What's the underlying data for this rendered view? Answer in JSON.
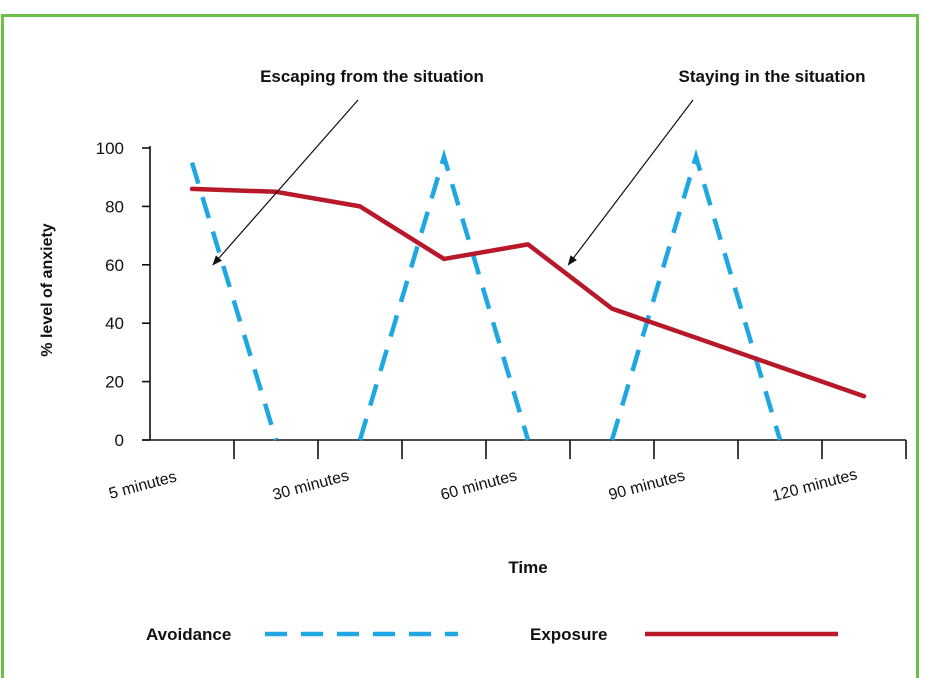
{
  "colors": {
    "frame": "#6cc04a",
    "avoidance": "#1ea7e1",
    "exposure": "#b7182a",
    "axis": "#111111"
  },
  "chart_data": {
    "type": "line",
    "title": "",
    "xlabel": "Time",
    "ylabel": "% level of anxiety",
    "ylim": [
      0,
      100
    ],
    "yticks": [
      0,
      20,
      40,
      60,
      80,
      100
    ],
    "xlim": [
      0,
      9
    ],
    "x_tick_labels": [
      {
        "x": 0.5,
        "label": "5 minutes"
      },
      {
        "x": 2.5,
        "label": "30 minutes"
      },
      {
        "x": 4.5,
        "label": "60 minutes"
      },
      {
        "x": 6.5,
        "label": "90 minutes"
      },
      {
        "x": 8.5,
        "label": "120 minutes"
      }
    ],
    "x_minor_ticks": [
      1,
      2,
      3,
      4,
      5,
      6,
      7,
      8,
      9
    ],
    "grid": false,
    "legend_position": "bottom",
    "series": [
      {
        "name": "Avoidance",
        "style": "dashed",
        "segments": [
          [
            {
              "x": 0.5,
              "y": 95
            },
            {
              "x": 1.5,
              "y": 0
            }
          ],
          [
            {
              "x": 2.5,
              "y": 0
            },
            {
              "x": 3.5,
              "y": 97
            },
            {
              "x": 4.5,
              "y": 0
            }
          ],
          [
            {
              "x": 5.5,
              "y": 0
            },
            {
              "x": 6.5,
              "y": 97
            },
            {
              "x": 7.5,
              "y": 0
            }
          ]
        ]
      },
      {
        "name": "Exposure",
        "style": "solid",
        "points": [
          {
            "x": 0.5,
            "y": 86
          },
          {
            "x": 1.5,
            "y": 85
          },
          {
            "x": 2.5,
            "y": 80
          },
          {
            "x": 3.5,
            "y": 62
          },
          {
            "x": 4.5,
            "y": 67
          },
          {
            "x": 5.5,
            "y": 45
          },
          {
            "x": 6.5,
            "y": 35
          },
          {
            "x": 7.5,
            "y": 25
          },
          {
            "x": 8.5,
            "y": 15
          }
        ]
      }
    ],
    "annotations": [
      {
        "text": "Escaping from the situation",
        "target": {
          "x": 0.75,
          "y": 60
        }
      },
      {
        "text": "Staying in the situation",
        "target": {
          "x": 4.98,
          "y": 60
        }
      }
    ]
  }
}
